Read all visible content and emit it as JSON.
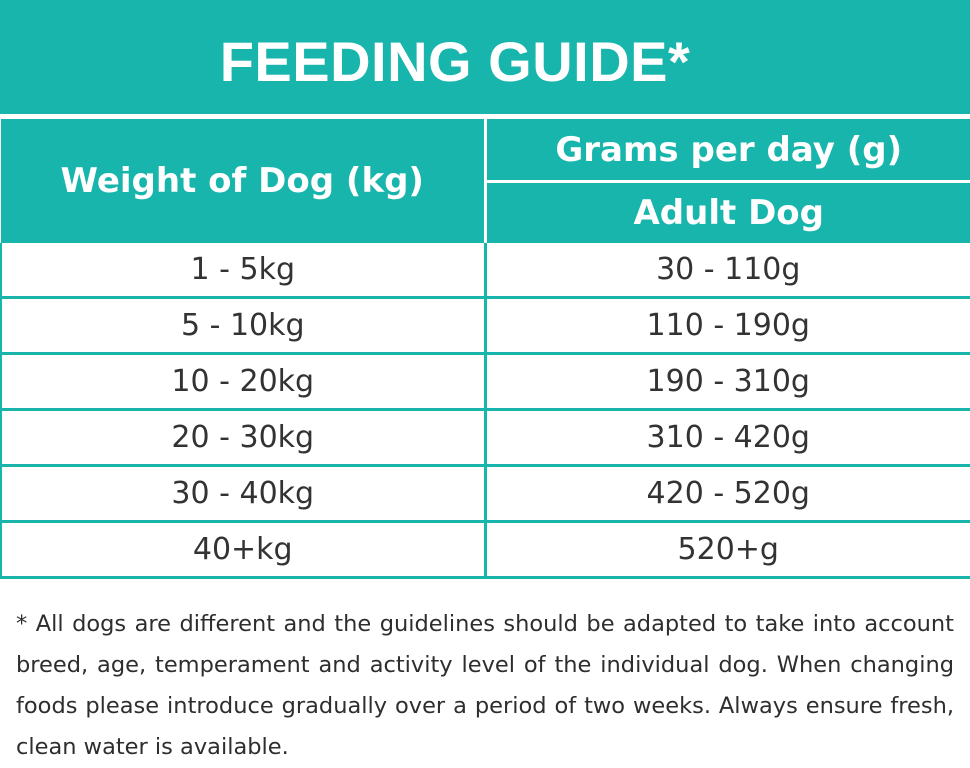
{
  "title": "FEEDING GUIDE*",
  "table": {
    "header_left": "Weight of Dog (kg)",
    "header_right_top": "Grams per day (g)",
    "header_right_bottom": "Adult Dog",
    "rows": [
      {
        "weight": "1 - 5kg",
        "grams": "30 - 110g"
      },
      {
        "weight": "5 - 10kg",
        "grams": "110 - 190g"
      },
      {
        "weight": "10 - 20kg",
        "grams": "190 - 310g"
      },
      {
        "weight": "20 - 30kg",
        "grams": "310 - 420g"
      },
      {
        "weight": "30 - 40kg",
        "grams": "420 - 520g"
      },
      {
        "weight": "40+kg",
        "grams": "520+g"
      }
    ]
  },
  "footnote": "* All dogs are different and the guidelines should be adapted to take into account breed, age, temperament and activity level of the individual dog. When changing foods please introduce gradually over a period of two weeks. Always ensure fresh, clean water is available.",
  "colors": {
    "accent": "#18b5ac",
    "text": "#333333",
    "header_text": "#ffffff"
  }
}
